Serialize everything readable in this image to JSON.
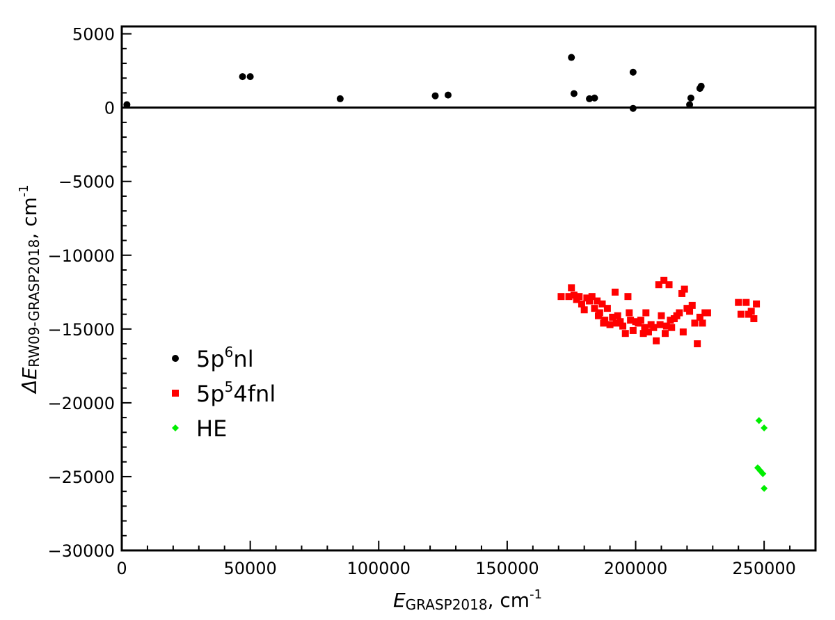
{
  "chart_data": {
    "type": "scatter",
    "title": "",
    "xlabel": {
      "main": "E",
      "sub": "GRASP2018",
      "tail": ", cm",
      "sup": "-1"
    },
    "ylabel": {
      "main": "ΔE",
      "sub": "RW09-GRASP2018",
      "tail": ", cm",
      "sup": "-1"
    },
    "xlim": [
      0,
      270000
    ],
    "ylim": [
      -30000,
      5500
    ],
    "x_ticks": [
      0,
      50000,
      100000,
      150000,
      200000,
      250000
    ],
    "x_tick_labels": [
      "0",
      "50000",
      "100000",
      "150000",
      "200000",
      "250000"
    ],
    "y_ticks": [
      5000,
      0,
      -5000,
      -10000,
      -15000,
      -20000,
      -25000,
      -30000
    ],
    "y_tick_labels": [
      "5000",
      "0",
      "−5000",
      "−10000",
      "−15000",
      "−20000",
      "−25000",
      "−30000"
    ],
    "grid": false,
    "zero_line": true,
    "legend_position": "lower-left",
    "series": [
      {
        "name_parts": {
          "pre": "5p",
          "sup": "6",
          "post": "nl"
        },
        "marker": "circle",
        "color": "#000000",
        "points": [
          [
            2000,
            200
          ],
          [
            47000,
            2100
          ],
          [
            50000,
            2100
          ],
          [
            85000,
            600
          ],
          [
            122000,
            800
          ],
          [
            127000,
            850
          ],
          [
            175000,
            3400
          ],
          [
            176000,
            950
          ],
          [
            182000,
            600
          ],
          [
            184000,
            650
          ],
          [
            199000,
            2400
          ],
          [
            199000,
            -50
          ],
          [
            221000,
            200
          ],
          [
            221500,
            650
          ],
          [
            225000,
            1300
          ],
          [
            225500,
            1450
          ]
        ]
      },
      {
        "name_parts": {
          "pre": "5p",
          "sup": "5",
          "post": "4fnl"
        },
        "marker": "square",
        "color": "#ff0000",
        "points": [
          [
            171000,
            -12800
          ],
          [
            174000,
            -12800
          ],
          [
            175000,
            -12200
          ],
          [
            176000,
            -12700
          ],
          [
            177000,
            -13000
          ],
          [
            178000,
            -12800
          ],
          [
            179000,
            -13300
          ],
          [
            180000,
            -13700
          ],
          [
            181000,
            -12900
          ],
          [
            182000,
            -13100
          ],
          [
            183000,
            -12800
          ],
          [
            184000,
            -13600
          ],
          [
            185000,
            -13100
          ],
          [
            185500,
            -14100
          ],
          [
            186000,
            -13900
          ],
          [
            187000,
            -13300
          ],
          [
            187500,
            -14600
          ],
          [
            188000,
            -14400
          ],
          [
            189000,
            -13600
          ],
          [
            190000,
            -14700
          ],
          [
            191000,
            -14200
          ],
          [
            192000,
            -12500
          ],
          [
            192500,
            -14600
          ],
          [
            193000,
            -14100
          ],
          [
            194000,
            -14500
          ],
          [
            195000,
            -14800
          ],
          [
            196000,
            -15300
          ],
          [
            197000,
            -12800
          ],
          [
            197500,
            -13900
          ],
          [
            198000,
            -14400
          ],
          [
            199000,
            -15100
          ],
          [
            200000,
            -14500
          ],
          [
            201000,
            -14600
          ],
          [
            202000,
            -14400
          ],
          [
            203000,
            -15300
          ],
          [
            203500,
            -14900
          ],
          [
            204000,
            -13900
          ],
          [
            205000,
            -15200
          ],
          [
            206000,
            -14700
          ],
          [
            207000,
            -14900
          ],
          [
            208000,
            -15800
          ],
          [
            209000,
            -12000
          ],
          [
            209500,
            -14700
          ],
          [
            210000,
            -14100
          ],
          [
            211000,
            -11700
          ],
          [
            211500,
            -15300
          ],
          [
            212000,
            -14800
          ],
          [
            213000,
            -12000
          ],
          [
            213500,
            -14400
          ],
          [
            214000,
            -14900
          ],
          [
            215000,
            -14300
          ],
          [
            216000,
            -14100
          ],
          [
            217000,
            -13900
          ],
          [
            218000,
            -12600
          ],
          [
            218500,
            -15200
          ],
          [
            219000,
            -12300
          ],
          [
            220000,
            -13600
          ],
          [
            221000,
            -13800
          ],
          [
            222000,
            -13400
          ],
          [
            223000,
            -14600
          ],
          [
            224000,
            -16000
          ],
          [
            225000,
            -14200
          ],
          [
            226000,
            -14600
          ],
          [
            227000,
            -13900
          ],
          [
            228000,
            -13900
          ],
          [
            240000,
            -13200
          ],
          [
            241000,
            -14000
          ],
          [
            243000,
            -13200
          ],
          [
            244000,
            -14000
          ],
          [
            245000,
            -13800
          ],
          [
            246000,
            -14300
          ],
          [
            247000,
            -13300
          ]
        ]
      },
      {
        "name": "HE",
        "marker": "diamond",
        "color": "#00ee00",
        "points": [
          [
            248000,
            -21200
          ],
          [
            250000,
            -21700
          ],
          [
            247500,
            -24400
          ],
          [
            248500,
            -24600
          ],
          [
            249500,
            -24800
          ],
          [
            250000,
            -25800
          ]
        ]
      }
    ]
  }
}
